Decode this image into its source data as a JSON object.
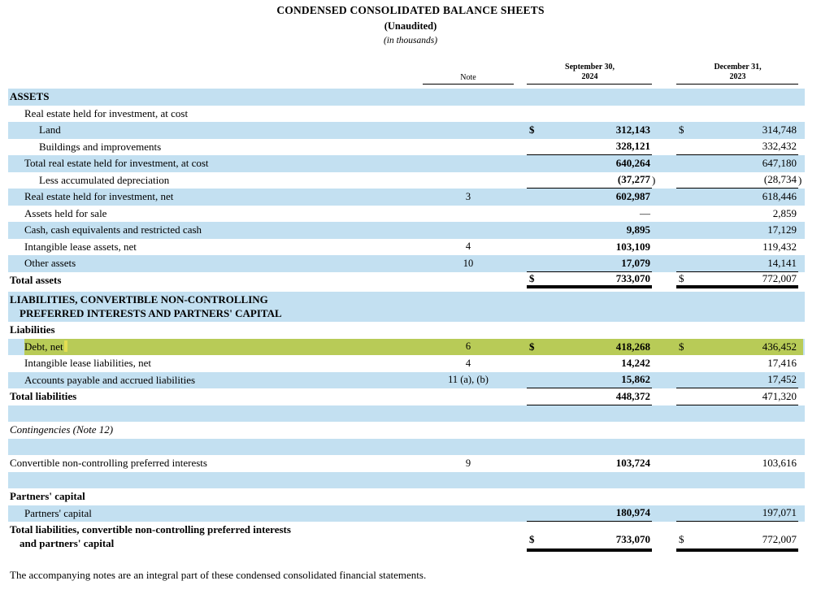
{
  "title": {
    "line1": "CONDENSED CONSOLIDATED BALANCE SHEETS",
    "line2": "(Unaudited)",
    "line3": "(in thousands)"
  },
  "colors": {
    "row_blue": "#c3e0f1",
    "highlight_green": "#b8cb57",
    "cursor_yellow": "#e3de52"
  },
  "table": {
    "header": {
      "note": "Note",
      "col1_line1": "September 30,",
      "col1_line2": "2024",
      "col2_line1": "December 31,",
      "col2_line2": "2023"
    },
    "rows": [
      {
        "label": "ASSETS",
        "bold": true,
        "indent": 0,
        "bg": "blue"
      },
      {
        "label": "Real estate held for investment, at cost",
        "indent": 1,
        "bg": "white"
      },
      {
        "label": "Land",
        "indent": 2,
        "bg": "blue",
        "d1": "$",
        "v1": "312,143",
        "b1": true,
        "d2": "$",
        "v2": "314,748"
      },
      {
        "label": "Buildings and improvements",
        "indent": 2,
        "bg": "white",
        "v1": "328,121",
        "b1": true,
        "v2": "332,432",
        "u": "single"
      },
      {
        "label": "Total real estate held for investment, at cost",
        "indent": 1,
        "bg": "blue",
        "v1": "640,264",
        "b1": true,
        "v2": "647,180"
      },
      {
        "label": "Less accumulated depreciation",
        "indent": 2,
        "bg": "white",
        "v1": "(37,277",
        "p1": ")",
        "b1": true,
        "v2": "(28,734",
        "p2": ")",
        "u": "single"
      },
      {
        "label": "Real estate held for investment, net",
        "indent": 1,
        "bg": "blue",
        "note": "3",
        "v1": "602,987",
        "b1": true,
        "v2": "618,446"
      },
      {
        "label": "Assets held for sale",
        "indent": 1,
        "bg": "white",
        "v1": "—",
        "b1": false,
        "v2": "2,859"
      },
      {
        "label": "Cash, cash equivalents and restricted cash",
        "indent": 1,
        "bg": "blue",
        "v1": "9,895",
        "b1": true,
        "v2": "17,129"
      },
      {
        "label": "Intangible lease assets, net",
        "indent": 1,
        "bg": "white",
        "note": "4",
        "v1": "103,109",
        "b1": true,
        "v2": "119,432"
      },
      {
        "label": "Other assets",
        "indent": 1,
        "bg": "blue",
        "note": "10",
        "v1": "17,079",
        "b1": true,
        "v2": "14,141",
        "u": "single"
      },
      {
        "label": "Total assets",
        "indent": 0,
        "bold": true,
        "bg": "white",
        "d1": "$",
        "v1": "733,070",
        "b1": true,
        "d2": "$",
        "v2": "772,007",
        "u": "double"
      },
      {
        "label": "LIABILITIES, CONVERTIBLE NON-CONTROLLING",
        "label2": "PREFERRED INTERESTS AND PARTNERS' CAPITAL",
        "bold": true,
        "indent": 0,
        "bg": "blue",
        "gap_before": true
      },
      {
        "label": "Liabilities",
        "bold": true,
        "indent": 0,
        "bg": "white"
      },
      {
        "label": "Debt, net",
        "indent": 1,
        "bg": "blue",
        "highlight": true,
        "cursor": true,
        "note": "6",
        "d1": "$",
        "v1": "418,268",
        "b1": true,
        "d2": "$",
        "v2": "436,452"
      },
      {
        "label": "Intangible lease liabilities, net",
        "indent": 1,
        "bg": "white",
        "note": "4",
        "v1": "14,242",
        "b1": true,
        "v2": "17,416"
      },
      {
        "label": "Accounts payable and accrued liabilities",
        "indent": 1,
        "bg": "blue",
        "note": "11 (a), (b)",
        "v1": "15,862",
        "b1": true,
        "v2": "17,452",
        "u": "single"
      },
      {
        "label": "Total liabilities",
        "indent": 0,
        "bold": true,
        "bg": "white",
        "v1": "448,372",
        "b1": true,
        "v2": "471,320",
        "u": "single"
      },
      {
        "blank": true,
        "bg": "blue"
      },
      {
        "label": "Contingencies (Note 12)",
        "italic": true,
        "indent": 0,
        "bg": "white"
      },
      {
        "blank": true,
        "bg": "blue"
      },
      {
        "label": "Convertible non-controlling preferred interests",
        "indent": 0,
        "bg": "white",
        "note": "9",
        "v1": "103,724",
        "b1": true,
        "v2": "103,616"
      },
      {
        "blank": true,
        "bg": "blue"
      },
      {
        "label": "Partners' capital",
        "bold": true,
        "indent": 0,
        "bg": "white"
      },
      {
        "label": "Partners' capital",
        "indent": 1,
        "bg": "blue",
        "v1": "180,974",
        "b1": true,
        "v2": "197,071",
        "u": "single"
      },
      {
        "label": "Total liabilities, convertible non-controlling preferred interests",
        "label2": "and partners' capital",
        "bold": true,
        "indent": 0,
        "bg": "white",
        "d1": "$",
        "v1": "733,070",
        "b1": true,
        "d2": "$",
        "v2": "772,007",
        "u": "double"
      }
    ]
  },
  "footnote": "The accompanying notes are an integral part of these condensed consolidated financial statements."
}
